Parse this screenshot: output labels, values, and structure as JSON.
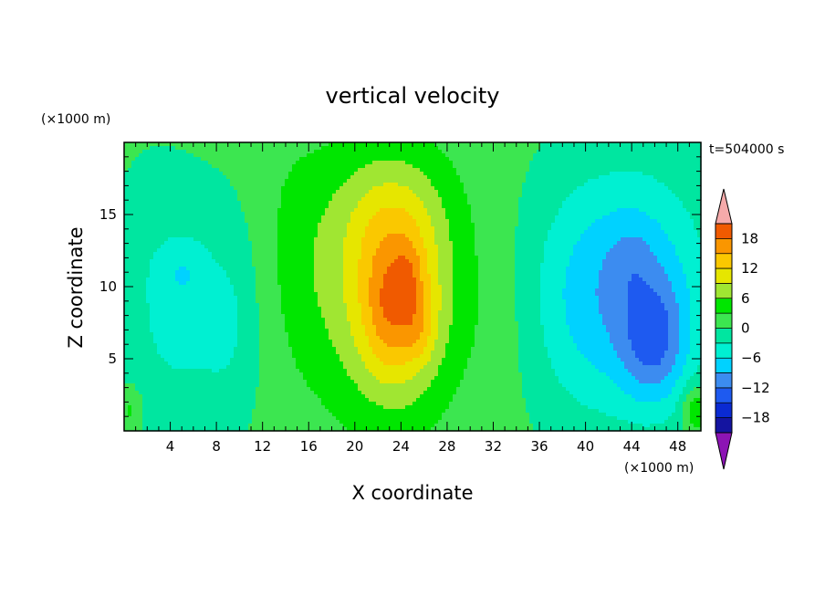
{
  "chart_data": {
    "type": "heatmap",
    "title": "vertical velocity",
    "time_label": "t=504000 s",
    "xlabel": "X coordinate",
    "ylabel": "Z coordinate",
    "x_unit": "(×1000 m)",
    "y_unit": "(×1000 m)",
    "xlim": [
      0,
      50
    ],
    "ylim": [
      0,
      20
    ],
    "x_ticks": [
      4,
      8,
      12,
      16,
      20,
      24,
      28,
      32,
      36,
      40,
      44,
      48
    ],
    "y_ticks": [
      5,
      10,
      15
    ],
    "x_tick_labels": [
      "4",
      "8",
      "12",
      "16",
      "20",
      "24",
      "28",
      "32",
      "36",
      "40",
      "44",
      "48"
    ],
    "y_tick_labels": [
      "5",
      "10",
      "15"
    ],
    "colorbar": {
      "levels": [
        -21,
        -18,
        -15,
        -12,
        -9,
        -6,
        -3,
        0,
        3,
        6,
        9,
        12,
        15,
        18,
        21
      ],
      "labeled_levels": [
        18,
        12,
        6,
        0,
        -6,
        -12,
        -18
      ],
      "labels": [
        "18",
        "12",
        "6",
        "0",
        "−6",
        "−12",
        "−18"
      ],
      "colors_low_to_high": [
        "#5a14a0",
        "#1414a0",
        "#0a2ad2",
        "#1e5af0",
        "#3c8cf0",
        "#00d2ff",
        "#00f0d2",
        "#00e6a0",
        "#3ce650",
        "#00e600",
        "#a0e632",
        "#e6e600",
        "#fac800",
        "#fa9600",
        "#f05a00",
        "#f01e1e"
      ],
      "under_color": "#8c14b4",
      "over_color": "#f5aaaa"
    },
    "field": {
      "background": 1.0,
      "features": [
        {
          "x": 22.0,
          "z": 10.0,
          "sx": 4.5,
          "sz": 6.0,
          "amp": 8.0
        },
        {
          "x": 24.0,
          "z": 9.0,
          "sx": 2.5,
          "sz": 4.5,
          "amp": 9.0
        },
        {
          "x": 24.6,
          "z": 10.5,
          "sx": 0.8,
          "sz": 1.6,
          "amp": 3.0
        },
        {
          "x": 25.5,
          "z": 7.0,
          "sx": 1.0,
          "sz": 1.5,
          "amp": 3.0
        },
        {
          "x": 22.5,
          "z": 8.0,
          "sx": 1.0,
          "sz": 2.5,
          "amp": 2.0
        },
        {
          "x": 23.0,
          "z": 15.5,
          "sx": 4.0,
          "sz": 3.0,
          "amp": 3.0
        },
        {
          "x": 45.0,
          "z": 10.0,
          "sx": 4.5,
          "sz": 6.0,
          "amp": -8.0
        },
        {
          "x": 46.0,
          "z": 6.0,
          "sx": 2.0,
          "sz": 3.0,
          "amp": -8.0
        },
        {
          "x": 44.0,
          "z": 12.0,
          "sx": 1.5,
          "sz": 2.0,
          "amp": -2.0
        },
        {
          "x": 39.0,
          "z": 9.0,
          "sx": 4.0,
          "sz": 6.0,
          "amp": -5.0
        },
        {
          "x": 7.0,
          "z": 8.0,
          "sx": 4.0,
          "sz": 6.0,
          "amp": -4.0
        },
        {
          "x": 5.0,
          "z": 11.0,
          "sx": 1.5,
          "sz": 1.5,
          "amp": -3.0
        },
        {
          "x": 8.5,
          "z": 7.5,
          "sx": 1.0,
          "sz": 2.0,
          "amp": -3.0
        },
        {
          "x": 2.0,
          "z": 8.0,
          "sx": 3.0,
          "sz": 8.0,
          "amp": -2.0
        },
        {
          "x": 14.5,
          "z": 12.0,
          "sx": 2.0,
          "sz": 6.0,
          "amp": 2.0
        },
        {
          "x": 33.0,
          "z": 8.0,
          "sx": 3.0,
          "sz": 5.0,
          "amp": 1.5
        },
        {
          "x": 49.5,
          "z": 1.5,
          "sx": 0.8,
          "sz": 1.2,
          "amp": 6.0
        },
        {
          "x": 0.5,
          "z": 1.5,
          "sx": 0.8,
          "sz": 1.2,
          "amp": 4.0
        }
      ]
    }
  }
}
